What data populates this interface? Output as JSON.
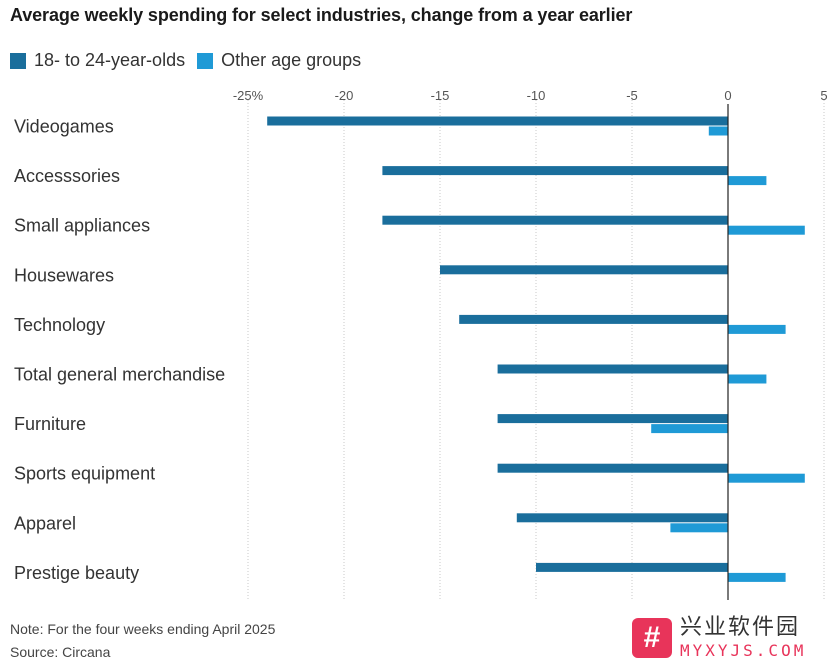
{
  "chart_data": {
    "type": "bar",
    "orientation": "horizontal",
    "title": "Average weekly spending for select industries, change from a year earlier",
    "categories": [
      "Videogames",
      "Accesssories",
      "Small appliances",
      "Housewares",
      "Technology",
      "Total general merchandise",
      "Furniture",
      "Sports equipment",
      "Apparel",
      "Prestige beauty"
    ],
    "series": [
      {
        "name": "18- to 24-year-olds",
        "color": "#1a6e9c",
        "values": [
          -24,
          -18,
          -18,
          -15,
          -14,
          -12,
          -12,
          -12,
          -11,
          -10
        ]
      },
      {
        "name": "Other age groups",
        "color": "#1f9ad6",
        "values": [
          -1,
          2,
          4,
          0,
          3,
          2,
          -4,
          4,
          -3,
          3
        ]
      }
    ],
    "xlim": [
      -25,
      5
    ],
    "xticks": [
      -25,
      -20,
      -15,
      -10,
      -5,
      0,
      5
    ],
    "xtick_labels": [
      "-25%",
      "-20",
      "-15",
      "-10",
      "-5",
      "0",
      "5"
    ],
    "grid": "vertical dotted",
    "legend_position": "top-left",
    "note": "Note: For the four weeks ending April 2025",
    "source": "Source: Circana"
  },
  "watermark": {
    "logo_glyph": "#",
    "cn_text": "兴业软件园",
    "en_text": "MYXYJS.COM"
  }
}
